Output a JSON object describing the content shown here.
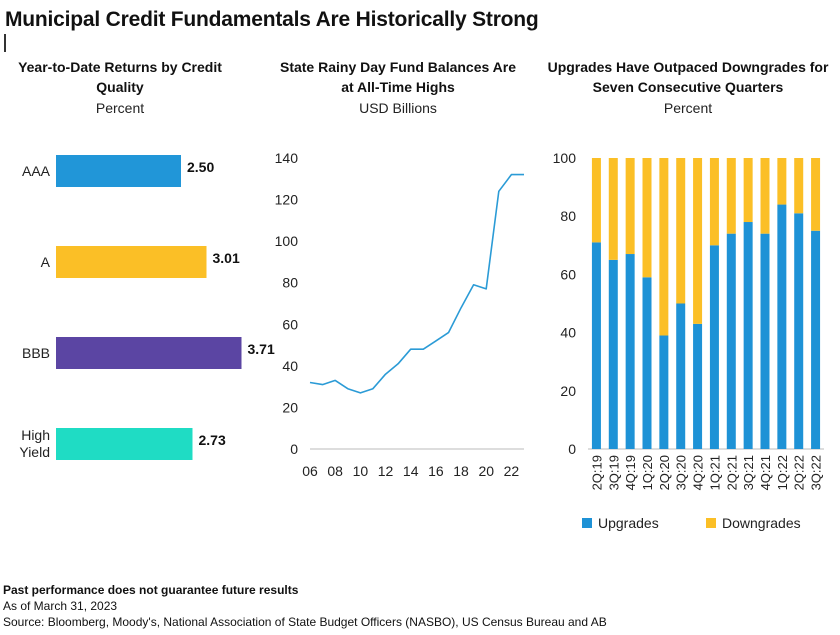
{
  "title": "Municipal Credit Fundamentals Are Historically Strong",
  "footer": {
    "disclaimer": "Past performance does not guarantee future results",
    "as_of": "As of March 31, 2023",
    "source": "Source: Bloomberg, Moody's, National Association of State Budget Officers (NASBO), US Census Bureau and AB"
  },
  "colors": {
    "aaa": "#2196d8",
    "a": "#fbbf26",
    "bbb": "#5b45a3",
    "high_yield": "#1fdcc4",
    "line": "#2b9bd6",
    "upgrades": "#1e92d6",
    "downgrades": "#fbbf26",
    "axis": "#bbbbbb"
  },
  "chart_data": [
    {
      "type": "bar",
      "orientation": "horizontal",
      "title": "Year-to-Date Returns by Credit Quality",
      "unit_label": "Percent",
      "categories": [
        "AAA",
        "A",
        "BBB",
        "High Yield"
      ],
      "values": [
        2.5,
        3.01,
        3.71,
        2.73
      ],
      "value_labels": [
        "2.50",
        "3.01",
        "3.71",
        "2.73"
      ],
      "xlim": [
        0,
        4
      ]
    },
    {
      "type": "line",
      "title": "State Rainy Day Fund Balances Are at All-Time Highs",
      "unit_label": "USD Billions",
      "x": [
        2006,
        2007,
        2008,
        2009,
        2010,
        2011,
        2012,
        2013,
        2014,
        2015,
        2016,
        2017,
        2018,
        2019,
        2020,
        2021,
        2022,
        2023
      ],
      "y": [
        32,
        31,
        33,
        29,
        27,
        29,
        36,
        41,
        48,
        48,
        52,
        56,
        68,
        79,
        77,
        124,
        132,
        132
      ],
      "xticks": [
        "06",
        "08",
        "10",
        "12",
        "14",
        "16",
        "18",
        "20",
        "22"
      ],
      "xtick_values": [
        2006,
        2008,
        2010,
        2012,
        2014,
        2016,
        2018,
        2020,
        2022
      ],
      "yticks": [
        0,
        20,
        40,
        60,
        80,
        100,
        120,
        140
      ],
      "xlim": [
        2006,
        2023
      ],
      "ylim": [
        0,
        140
      ],
      "grid": false
    },
    {
      "type": "bar",
      "stacked": true,
      "title": "Upgrades Have Outpaced Downgrades for Seven Consecutive Quarters",
      "unit_label": "Percent",
      "categories": [
        "2Q:19",
        "3Q:19",
        "4Q:19",
        "1Q:20",
        "2Q:20",
        "3Q:20",
        "4Q:20",
        "1Q:21",
        "2Q:21",
        "3Q:21",
        "4Q:21",
        "1Q:22",
        "2Q:22",
        "3Q:22"
      ],
      "series": [
        {
          "name": "Upgrades",
          "values": [
            71,
            65,
            67,
            59,
            39,
            50,
            43,
            70,
            74,
            78,
            74,
            84,
            81,
            75
          ]
        },
        {
          "name": "Downgrades",
          "values": [
            29,
            35,
            33,
            41,
            61,
            50,
            57,
            30,
            26,
            22,
            26,
            16,
            19,
            25
          ]
        }
      ],
      "yticks": [
        0,
        20,
        40,
        60,
        80,
        100
      ],
      "ylim": [
        0,
        100
      ],
      "legend": "bottom"
    }
  ]
}
